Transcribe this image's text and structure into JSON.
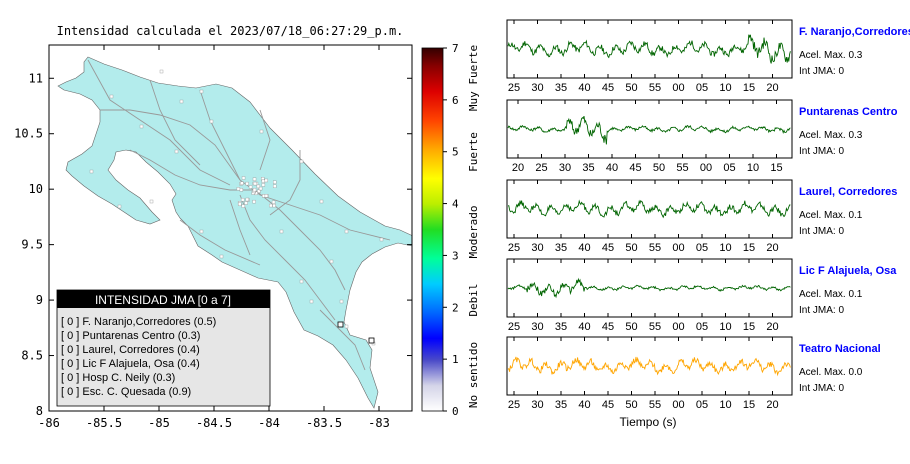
{
  "title": "Intensidad calculada el 2023/07/18_06:27:29_p.m.",
  "map": {
    "xticks": [
      "-86",
      "-85.5",
      "-85",
      "-84.5",
      "-84",
      "-83.5",
      "-83"
    ],
    "yticks": [
      "11",
      "10.5",
      "10",
      "9.5",
      "9",
      "8.5",
      "8"
    ],
    "xlim": [
      -86,
      -82.7
    ],
    "ylim": [
      8,
      11.3
    ]
  },
  "colorbar": {
    "ticks": [
      "0",
      "1",
      "2",
      "3",
      "4",
      "5",
      "6",
      "7"
    ],
    "categories": [
      "No sentido",
      "Debil",
      "Moderado",
      "Fuerte",
      "Muy Fuerte"
    ]
  },
  "legend": {
    "title": "INTENSIDAD JMA [0 a 7]",
    "items": [
      "[ 0 ]  F. Naranjo,Corredores (0.5)",
      "[ 0 ]  Puntarenas Centro (0.3)",
      "[ 0 ]  Laurel, Corredores (0.4)",
      "[ 0 ]  Lic F Alajuela, Osa (0.4)",
      "[ 0 ]  Hosp C. Neily (0.3)",
      "[ 0 ]  Esc. C. Quesada (0.9)"
    ]
  },
  "xlabel": "Tiempo (s)",
  "colors": {
    "trace_green": "#006400",
    "trace_orange": "#ffa500",
    "station_name": "#0000ff",
    "land": "#b3ecec",
    "legend_title_bg": "#000000",
    "legend_bg": "#e6e6e6"
  },
  "chart_data": [
    {
      "type": "heatmap",
      "title": "Intensidad calculada el 2023/07/18_06:27:29_p.m.",
      "xlim": [
        -86,
        -82.7
      ],
      "ylim": [
        8,
        11.3
      ],
      "colorbar_range": [
        0,
        7
      ]
    },
    {
      "type": "line",
      "station": "F. Naranjo,Corredores",
      "accel_label": "Acel. Max. 0.3",
      "jma_label": "Int JMA: 0",
      "ticks": [
        "25",
        "30",
        "35",
        "40",
        "45",
        "50",
        "55",
        "00",
        "05",
        "10",
        "15",
        "20"
      ],
      "color": "#006400"
    },
    {
      "type": "line",
      "station": "Puntarenas Centro",
      "accel_label": "Acel. Max. 0.3",
      "jma_label": "Int JMA: 0",
      "ticks": [
        "20",
        "25",
        "30",
        "35",
        "40",
        "45",
        "50",
        "55",
        "00",
        "05",
        "10",
        "15"
      ],
      "color": "#006400"
    },
    {
      "type": "line",
      "station": "Laurel, Corredores",
      "accel_label": "Acel. Max. 0.1",
      "jma_label": "Int JMA: 0",
      "ticks": [
        "25",
        "30",
        "35",
        "40",
        "45",
        "50",
        "55",
        "00",
        "05",
        "10",
        "15",
        "20"
      ],
      "color": "#006400"
    },
    {
      "type": "line",
      "station": "Lic F Alajuela, Osa",
      "accel_label": "Acel. Max. 0.1",
      "jma_label": "Int JMA: 0",
      "ticks": [
        "25",
        "30",
        "35",
        "40",
        "45",
        "50",
        "55",
        "00",
        "05",
        "10",
        "15",
        "20"
      ],
      "color": "#006400"
    },
    {
      "type": "line",
      "station": "Teatro Nacional",
      "accel_label": "Acel. Max. 0.0",
      "jma_label": "Int JMA: 0",
      "ticks": [
        "25",
        "30",
        "35",
        "40",
        "45",
        "50",
        "55",
        "00",
        "05",
        "10",
        "15",
        "20"
      ],
      "color": "#ffa500"
    }
  ]
}
